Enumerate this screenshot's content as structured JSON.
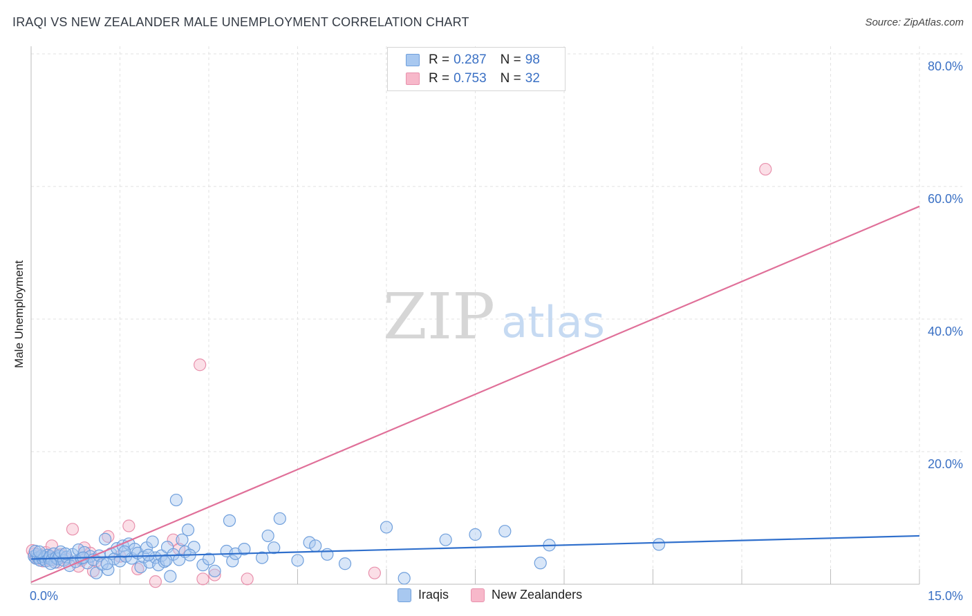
{
  "title": "IRAQI VS NEW ZEALANDER MALE UNEMPLOYMENT CORRELATION CHART",
  "source": "Source: ZipAtlas.com",
  "watermark": {
    "zip": "ZIP",
    "atlas": "atlas"
  },
  "colors": {
    "iraqis_fill": "#a8c8f0",
    "iraqis_stroke": "#6f9fdc",
    "iraqis_line": "#2f6fcc",
    "nz_fill": "#f7b8ca",
    "nz_stroke": "#e890ac",
    "nz_line": "#e07099",
    "tick_text": "#3a70c4",
    "grid": "#e2e2e2"
  },
  "legend": {
    "rows": [
      {
        "r_label": "R =",
        "r_value": "0.287",
        "n_label": "N =",
        "n_value": "98"
      },
      {
        "r_label": "R =",
        "r_value": "0.753",
        "n_label": "N =",
        "n_value": "32"
      }
    ]
  },
  "bottom_legend": {
    "iraqis": "Iraqis",
    "nz": "New Zealanders"
  },
  "chart_data": {
    "type": "scatter",
    "title": "IRAQI VS NEW ZEALANDER MALE UNEMPLOYMENT CORRELATION CHART",
    "xlabel": "",
    "ylabel": "Male Unemployment",
    "xlim": [
      0,
      15
    ],
    "ylim": [
      0,
      80
    ],
    "x_tick_labels": [
      "0.0%",
      "15.0%"
    ],
    "y_ticks": [
      20,
      40,
      60,
      80
    ],
    "y_tick_labels": [
      "20.0%",
      "40.0%",
      "60.0%",
      "80.0%"
    ],
    "grid": true,
    "series": [
      {
        "name": "Iraqis",
        "R": 0.287,
        "N": 98,
        "trend": {
          "x": [
            0,
            15
          ],
          "y": [
            3.8,
            7.3
          ]
        },
        "points": [
          [
            0.05,
            4.2
          ],
          [
            0.08,
            3.9
          ],
          [
            0.1,
            4.5
          ],
          [
            0.12,
            4.0
          ],
          [
            0.15,
            3.6
          ],
          [
            0.18,
            4.3
          ],
          [
            0.2,
            3.8
          ],
          [
            0.22,
            4.1
          ],
          [
            0.25,
            3.5
          ],
          [
            0.28,
            4.4
          ],
          [
            0.3,
            3.9
          ],
          [
            0.32,
            4.2
          ],
          [
            0.35,
            3.7
          ],
          [
            0.38,
            4.6
          ],
          [
            0.4,
            3.3
          ],
          [
            0.42,
            4.0
          ],
          [
            0.45,
            3.8
          ],
          [
            0.48,
            4.3
          ],
          [
            0.5,
            4.9
          ],
          [
            0.55,
            3.6
          ],
          [
            0.6,
            4.1
          ],
          [
            0.65,
            2.8
          ],
          [
            0.7,
            4.5
          ],
          [
            0.75,
            3.4
          ],
          [
            0.8,
            5.2
          ],
          [
            0.85,
            3.9
          ],
          [
            0.9,
            4.8
          ],
          [
            0.95,
            3.2
          ],
          [
            1.0,
            4.2
          ],
          [
            1.05,
            3.7
          ],
          [
            1.1,
            1.7
          ],
          [
            1.15,
            4.3
          ],
          [
            1.2,
            3.0
          ],
          [
            1.25,
            6.8
          ],
          [
            1.3,
            2.2
          ],
          [
            1.35,
            4.6
          ],
          [
            1.4,
            3.8
          ],
          [
            1.45,
            5.4
          ],
          [
            1.5,
            3.5
          ],
          [
            1.55,
            5.8
          ],
          [
            1.6,
            4.2
          ],
          [
            1.65,
            6.1
          ],
          [
            1.7,
            3.9
          ],
          [
            1.75,
            5.3
          ],
          [
            1.8,
            4.7
          ],
          [
            1.85,
            2.6
          ],
          [
            1.9,
            4.1
          ],
          [
            1.95,
            5.5
          ],
          [
            2.0,
            3.3
          ],
          [
            2.05,
            6.4
          ],
          [
            2.1,
            4.0
          ],
          [
            2.15,
            2.9
          ],
          [
            2.2,
            4.3
          ],
          [
            2.25,
            3.4
          ],
          [
            2.3,
            5.6
          ],
          [
            2.35,
            1.2
          ],
          [
            2.4,
            4.5
          ],
          [
            2.45,
            12.7
          ],
          [
            2.5,
            3.7
          ],
          [
            2.55,
            6.7
          ],
          [
            2.6,
            4.9
          ],
          [
            2.65,
            8.2
          ],
          [
            2.75,
            5.6
          ],
          [
            2.9,
            2.9
          ],
          [
            3.1,
            2.0
          ],
          [
            3.3,
            5.0
          ],
          [
            3.35,
            9.6
          ],
          [
            3.4,
            3.5
          ],
          [
            3.45,
            4.6
          ],
          [
            3.6,
            5.3
          ],
          [
            3.9,
            4.0
          ],
          [
            4.0,
            7.3
          ],
          [
            4.1,
            5.5
          ],
          [
            4.2,
            9.9
          ],
          [
            4.5,
            3.6
          ],
          [
            4.7,
            6.3
          ],
          [
            4.8,
            5.8
          ],
          [
            5.0,
            4.5
          ],
          [
            5.3,
            3.1
          ],
          [
            6.0,
            8.6
          ],
          [
            6.3,
            0.9
          ],
          [
            7.0,
            6.7
          ],
          [
            7.5,
            7.5
          ],
          [
            8.0,
            8.0
          ],
          [
            8.6,
            3.2
          ],
          [
            8.75,
            5.9
          ],
          [
            10.6,
            6.0
          ],
          [
            0.07,
            5.0
          ],
          [
            0.14,
            4.9
          ],
          [
            0.33,
            3.1
          ],
          [
            0.58,
            4.6
          ],
          [
            0.88,
            4.0
          ],
          [
            1.28,
            3.1
          ],
          [
            1.58,
            4.9
          ],
          [
            1.98,
            4.4
          ],
          [
            2.28,
            3.6
          ],
          [
            2.68,
            4.4
          ],
          [
            3.0,
            3.8
          ]
        ]
      },
      {
        "name": "New Zealanders",
        "R": 0.753,
        "N": 32,
        "trend": {
          "x": [
            0,
            15
          ],
          "y": [
            0.3,
            57.0
          ]
        },
        "points": [
          [
            0.05,
            4.6
          ],
          [
            0.1,
            3.9
          ],
          [
            0.15,
            4.2
          ],
          [
            0.2,
            3.5
          ],
          [
            0.25,
            4.8
          ],
          [
            0.3,
            3.6
          ],
          [
            0.35,
            5.8
          ],
          [
            0.4,
            4.0
          ],
          [
            0.45,
            3.3
          ],
          [
            0.5,
            4.5
          ],
          [
            0.6,
            3.8
          ],
          [
            0.7,
            8.3
          ],
          [
            0.8,
            2.7
          ],
          [
            0.85,
            3.6
          ],
          [
            0.9,
            5.5
          ],
          [
            1.0,
            4.7
          ],
          [
            1.05,
            2.0
          ],
          [
            1.1,
            3.5
          ],
          [
            1.3,
            7.2
          ],
          [
            1.5,
            4.2
          ],
          [
            1.65,
            8.8
          ],
          [
            1.8,
            2.3
          ],
          [
            2.1,
            0.4
          ],
          [
            2.4,
            6.7
          ],
          [
            2.5,
            5.3
          ],
          [
            2.85,
            33.1
          ],
          [
            2.9,
            0.8
          ],
          [
            3.1,
            1.4
          ],
          [
            3.65,
            0.8
          ],
          [
            5.8,
            1.7
          ],
          [
            12.4,
            62.6
          ],
          [
            0.02,
            5.1
          ]
        ]
      }
    ]
  }
}
